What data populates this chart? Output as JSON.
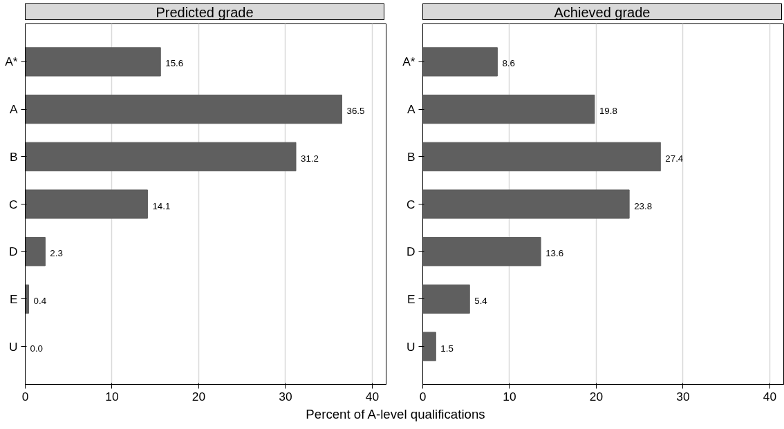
{
  "chart_data": [
    {
      "type": "bar",
      "orientation": "horizontal",
      "title": "Predicted grade",
      "xlabel": "Percent of A-level qualifications",
      "categories": [
        "A*",
        "A",
        "B",
        "C",
        "D",
        "E",
        "U"
      ],
      "values": [
        15.6,
        36.5,
        31.2,
        14.1,
        2.3,
        0.4,
        0.0
      ],
      "value_labels": [
        "15.6",
        "36.5",
        "31.2",
        "14.1",
        "2.3",
        "0.4",
        "0.0"
      ],
      "color": "#5f5f5f",
      "xlim": [
        0,
        41.6
      ],
      "xticks": [
        0,
        10,
        20,
        30,
        40
      ],
      "grid": "x"
    },
    {
      "type": "bar",
      "orientation": "horizontal",
      "title": "Achieved grade",
      "categories": [
        "A*",
        "A",
        "B",
        "C",
        "D",
        "E",
        "U"
      ],
      "values": [
        8.6,
        19.8,
        27.4,
        23.8,
        13.6,
        5.4,
        1.5
      ],
      "value_labels": [
        "8.6",
        "19.8",
        "27.4",
        "23.8",
        "13.6",
        "5.4",
        "1.5"
      ],
      "color": "#5f5f5f",
      "xlim": [
        0,
        41.6
      ],
      "xticks": [
        0,
        10,
        20,
        30,
        40
      ],
      "grid": "x"
    }
  ]
}
